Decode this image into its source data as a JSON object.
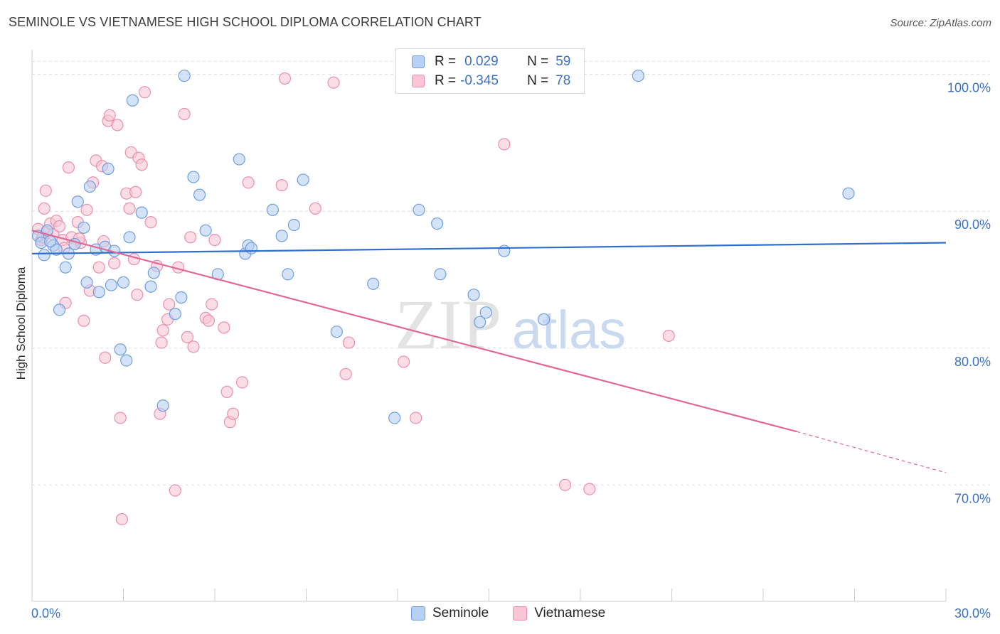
{
  "title": "SEMINOLE VS VIETNAMESE HIGH SCHOOL DIPLOMA CORRELATION CHART",
  "source": "Source: ZipAtlas.com",
  "watermark": {
    "zip": "ZIP",
    "atlas": "atlas"
  },
  "legend": {
    "rows": [
      {
        "r_label": "R =",
        "r_value": "0.029",
        "n_label": "N =",
        "n_value": "59"
      },
      {
        "r_label": "R =",
        "r_value": "-0.345",
        "n_label": "N =",
        "n_value": "78"
      }
    ]
  },
  "bottom_legend": {
    "seminole": "Seminole",
    "vietnamese": "Vietnamese"
  },
  "colors": {
    "seminole_fill": "#b8d1f2",
    "seminole_stroke": "#6f9ee0",
    "seminole_line": "#2f6fce",
    "vietnamese_fill": "#f8c6d5",
    "vietnamese_stroke": "#ec8fab",
    "vietnamese_line": "#e06892",
    "axis_label": "#3a72c4",
    "grid": "#dedede"
  },
  "chart_data": {
    "type": "scatter",
    "title": "SEMINOLE VS VIETNAMESE HIGH SCHOOL DIPLOMA CORRELATION CHART",
    "xlabel": "",
    "ylabel": "High School Diploma",
    "xlim": [
      0,
      30
    ],
    "ylim": [
      61.5,
      101.8
    ],
    "x_tick_labels": [
      "0.0%",
      "30.0%"
    ],
    "y_ticks": [
      70,
      80,
      90,
      100
    ],
    "y_tick_labels": [
      "70.0%",
      "80.0%",
      "90.0%",
      "100.0%"
    ],
    "series": [
      {
        "name": "Seminole",
        "R": 0.029,
        "N": 59,
        "trend": {
          "x0": 0,
          "y0": 86.9,
          "x1": 30,
          "y1": 87.7
        },
        "points": [
          [
            0.2,
            88.2
          ],
          [
            0.3,
            87.7
          ],
          [
            0.4,
            86.8
          ],
          [
            0.5,
            88.6
          ],
          [
            0.7,
            87.5
          ],
          [
            0.8,
            87.2
          ],
          [
            0.9,
            82.8
          ],
          [
            1.1,
            85.9
          ],
          [
            1.2,
            86.9
          ],
          [
            1.4,
            87.6
          ],
          [
            1.5,
            90.7
          ],
          [
            1.7,
            88.8
          ],
          [
            1.8,
            84.8
          ],
          [
            1.9,
            91.8
          ],
          [
            2.1,
            87.2
          ],
          [
            2.2,
            84.1
          ],
          [
            2.4,
            87.4
          ],
          [
            2.5,
            93.1
          ],
          [
            2.6,
            84.6
          ],
          [
            2.7,
            87.1
          ],
          [
            2.9,
            79.9
          ],
          [
            3.0,
            84.8
          ],
          [
            3.1,
            79.1
          ],
          [
            3.2,
            88.1
          ],
          [
            3.3,
            98.1
          ],
          [
            3.6,
            89.9
          ],
          [
            3.9,
            84.5
          ],
          [
            4.0,
            85.5
          ],
          [
            4.3,
            75.8
          ],
          [
            4.7,
            82.5
          ],
          [
            4.9,
            83.7
          ],
          [
            5.0,
            99.9
          ],
          [
            5.3,
            92.5
          ],
          [
            5.5,
            91.2
          ],
          [
            5.7,
            88.6
          ],
          [
            6.1,
            85.4
          ],
          [
            6.8,
            93.8
          ],
          [
            7.0,
            86.9
          ],
          [
            7.1,
            87.5
          ],
          [
            7.2,
            87.3
          ],
          [
            7.9,
            90.1
          ],
          [
            8.2,
            88.2
          ],
          [
            8.4,
            85.4
          ],
          [
            8.6,
            89.0
          ],
          [
            8.9,
            92.3
          ],
          [
            10.0,
            81.2
          ],
          [
            11.2,
            84.7
          ],
          [
            11.9,
            74.9
          ],
          [
            12.7,
            90.1
          ],
          [
            13.3,
            89.1
          ],
          [
            13.4,
            85.4
          ],
          [
            14.5,
            83.9
          ],
          [
            14.7,
            81.9
          ],
          [
            14.9,
            82.6
          ],
          [
            15.5,
            87.1
          ],
          [
            16.8,
            82.1
          ],
          [
            19.9,
            99.9
          ],
          [
            26.8,
            91.3
          ],
          [
            0.6,
            87.8
          ]
        ]
      },
      {
        "name": "Vietnamese",
        "R": -0.345,
        "N": 78,
        "trend": {
          "x0": 0,
          "y0": 88.6,
          "x1": 25.1,
          "y1": 73.9,
          "dash_x1": 30,
          "dash_y1": 70.9
        },
        "points": [
          [
            0.2,
            88.7
          ],
          [
            0.3,
            87.9
          ],
          [
            0.4,
            90.2
          ],
          [
            0.45,
            91.5
          ],
          [
            0.5,
            88.5
          ],
          [
            0.6,
            89.1
          ],
          [
            0.7,
            88.3
          ],
          [
            0.8,
            89.3
          ],
          [
            0.9,
            88.9
          ],
          [
            1.0,
            87.9
          ],
          [
            1.1,
            83.3
          ],
          [
            1.2,
            93.2
          ],
          [
            1.3,
            88.1
          ],
          [
            1.4,
            87.6
          ],
          [
            1.5,
            89.2
          ],
          [
            1.6,
            87.7
          ],
          [
            1.7,
            82.0
          ],
          [
            1.8,
            90.1
          ],
          [
            1.9,
            84.2
          ],
          [
            2.0,
            92.1
          ],
          [
            2.1,
            93.7
          ],
          [
            2.2,
            85.9
          ],
          [
            2.3,
            93.3
          ],
          [
            2.4,
            79.3
          ],
          [
            2.5,
            96.6
          ],
          [
            2.55,
            97.0
          ],
          [
            2.7,
            86.2
          ],
          [
            2.8,
            96.3
          ],
          [
            2.9,
            74.9
          ],
          [
            2.95,
            67.5
          ],
          [
            3.1,
            91.3
          ],
          [
            3.2,
            90.2
          ],
          [
            3.25,
            94.3
          ],
          [
            3.4,
            91.4
          ],
          [
            3.45,
            83.9
          ],
          [
            3.5,
            93.9
          ],
          [
            3.6,
            93.4
          ],
          [
            3.7,
            98.7
          ],
          [
            3.9,
            89.2
          ],
          [
            4.1,
            86.0
          ],
          [
            4.2,
            75.2
          ],
          [
            4.25,
            80.4
          ],
          [
            4.3,
            81.3
          ],
          [
            4.45,
            82.1
          ],
          [
            4.5,
            83.2
          ],
          [
            4.7,
            69.6
          ],
          [
            4.8,
            85.9
          ],
          [
            5.0,
            97.1
          ],
          [
            5.1,
            80.8
          ],
          [
            5.2,
            88.1
          ],
          [
            5.3,
            80.1
          ],
          [
            5.7,
            82.2
          ],
          [
            5.8,
            82.0
          ],
          [
            5.9,
            83.2
          ],
          [
            6.0,
            87.9
          ],
          [
            6.3,
            81.5
          ],
          [
            6.4,
            76.8
          ],
          [
            6.5,
            74.6
          ],
          [
            6.6,
            75.2
          ],
          [
            6.9,
            77.5
          ],
          [
            7.1,
            92.1
          ],
          [
            8.2,
            91.9
          ],
          [
            8.3,
            99.7
          ],
          [
            9.3,
            90.2
          ],
          [
            9.9,
            99.4
          ],
          [
            10.3,
            78.1
          ],
          [
            10.4,
            80.4
          ],
          [
            12.2,
            79.0
          ],
          [
            12.6,
            74.9
          ],
          [
            15.5,
            94.9
          ],
          [
            17.5,
            70.0
          ],
          [
            18.3,
            69.7
          ],
          [
            20.9,
            80.9
          ],
          [
            0.35,
            88.1
          ],
          [
            1.05,
            87.3
          ],
          [
            1.55,
            88.0
          ],
          [
            2.35,
            87.8
          ],
          [
            3.35,
            86.5
          ]
        ]
      }
    ]
  }
}
